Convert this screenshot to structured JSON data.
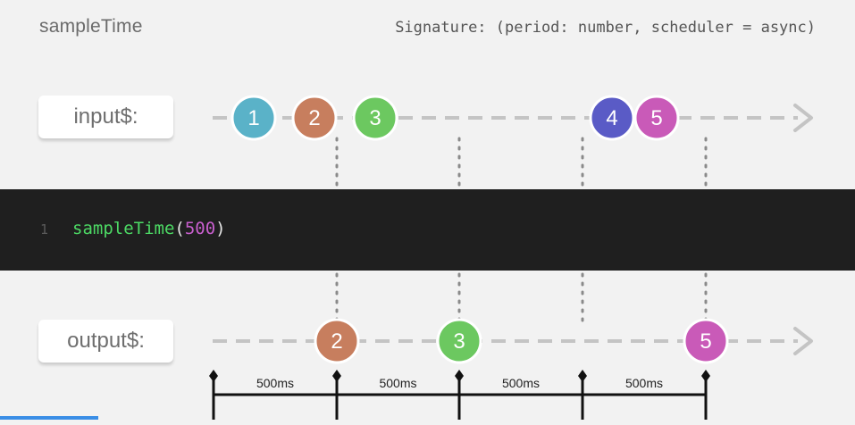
{
  "header": {
    "title": "sampleTime",
    "signature": "Signature: (period: number, scheduler = async)"
  },
  "streams": {
    "input_label": "input$:",
    "output_label": "output$:"
  },
  "code": {
    "line_number": "1",
    "function_name": "sampleTime",
    "open_paren": "(",
    "argument": "500",
    "close_paren": ")"
  },
  "input_marbles": [
    {
      "label": "1",
      "color": "#5ab2c8"
    },
    {
      "label": "2",
      "color": "#c77e5e"
    },
    {
      "label": "3",
      "color": "#6cc860"
    },
    {
      "label": "4",
      "color": "#5a5bc6"
    },
    {
      "label": "5",
      "color": "#c95ab8"
    }
  ],
  "output_marbles": [
    {
      "label": "2",
      "color": "#c77e5e"
    },
    {
      "label": "3",
      "color": "#6cc860"
    },
    {
      "label": "5",
      "color": "#c95ab8"
    }
  ],
  "intervals": [
    "500ms",
    "500ms",
    "500ms",
    "500ms"
  ],
  "colors": {
    "line": "#c4c4c4",
    "dots": "#8a8a8a",
    "code_bg": "#1f1f1f",
    "function": "#4cd964",
    "number": "#c95fcf"
  }
}
